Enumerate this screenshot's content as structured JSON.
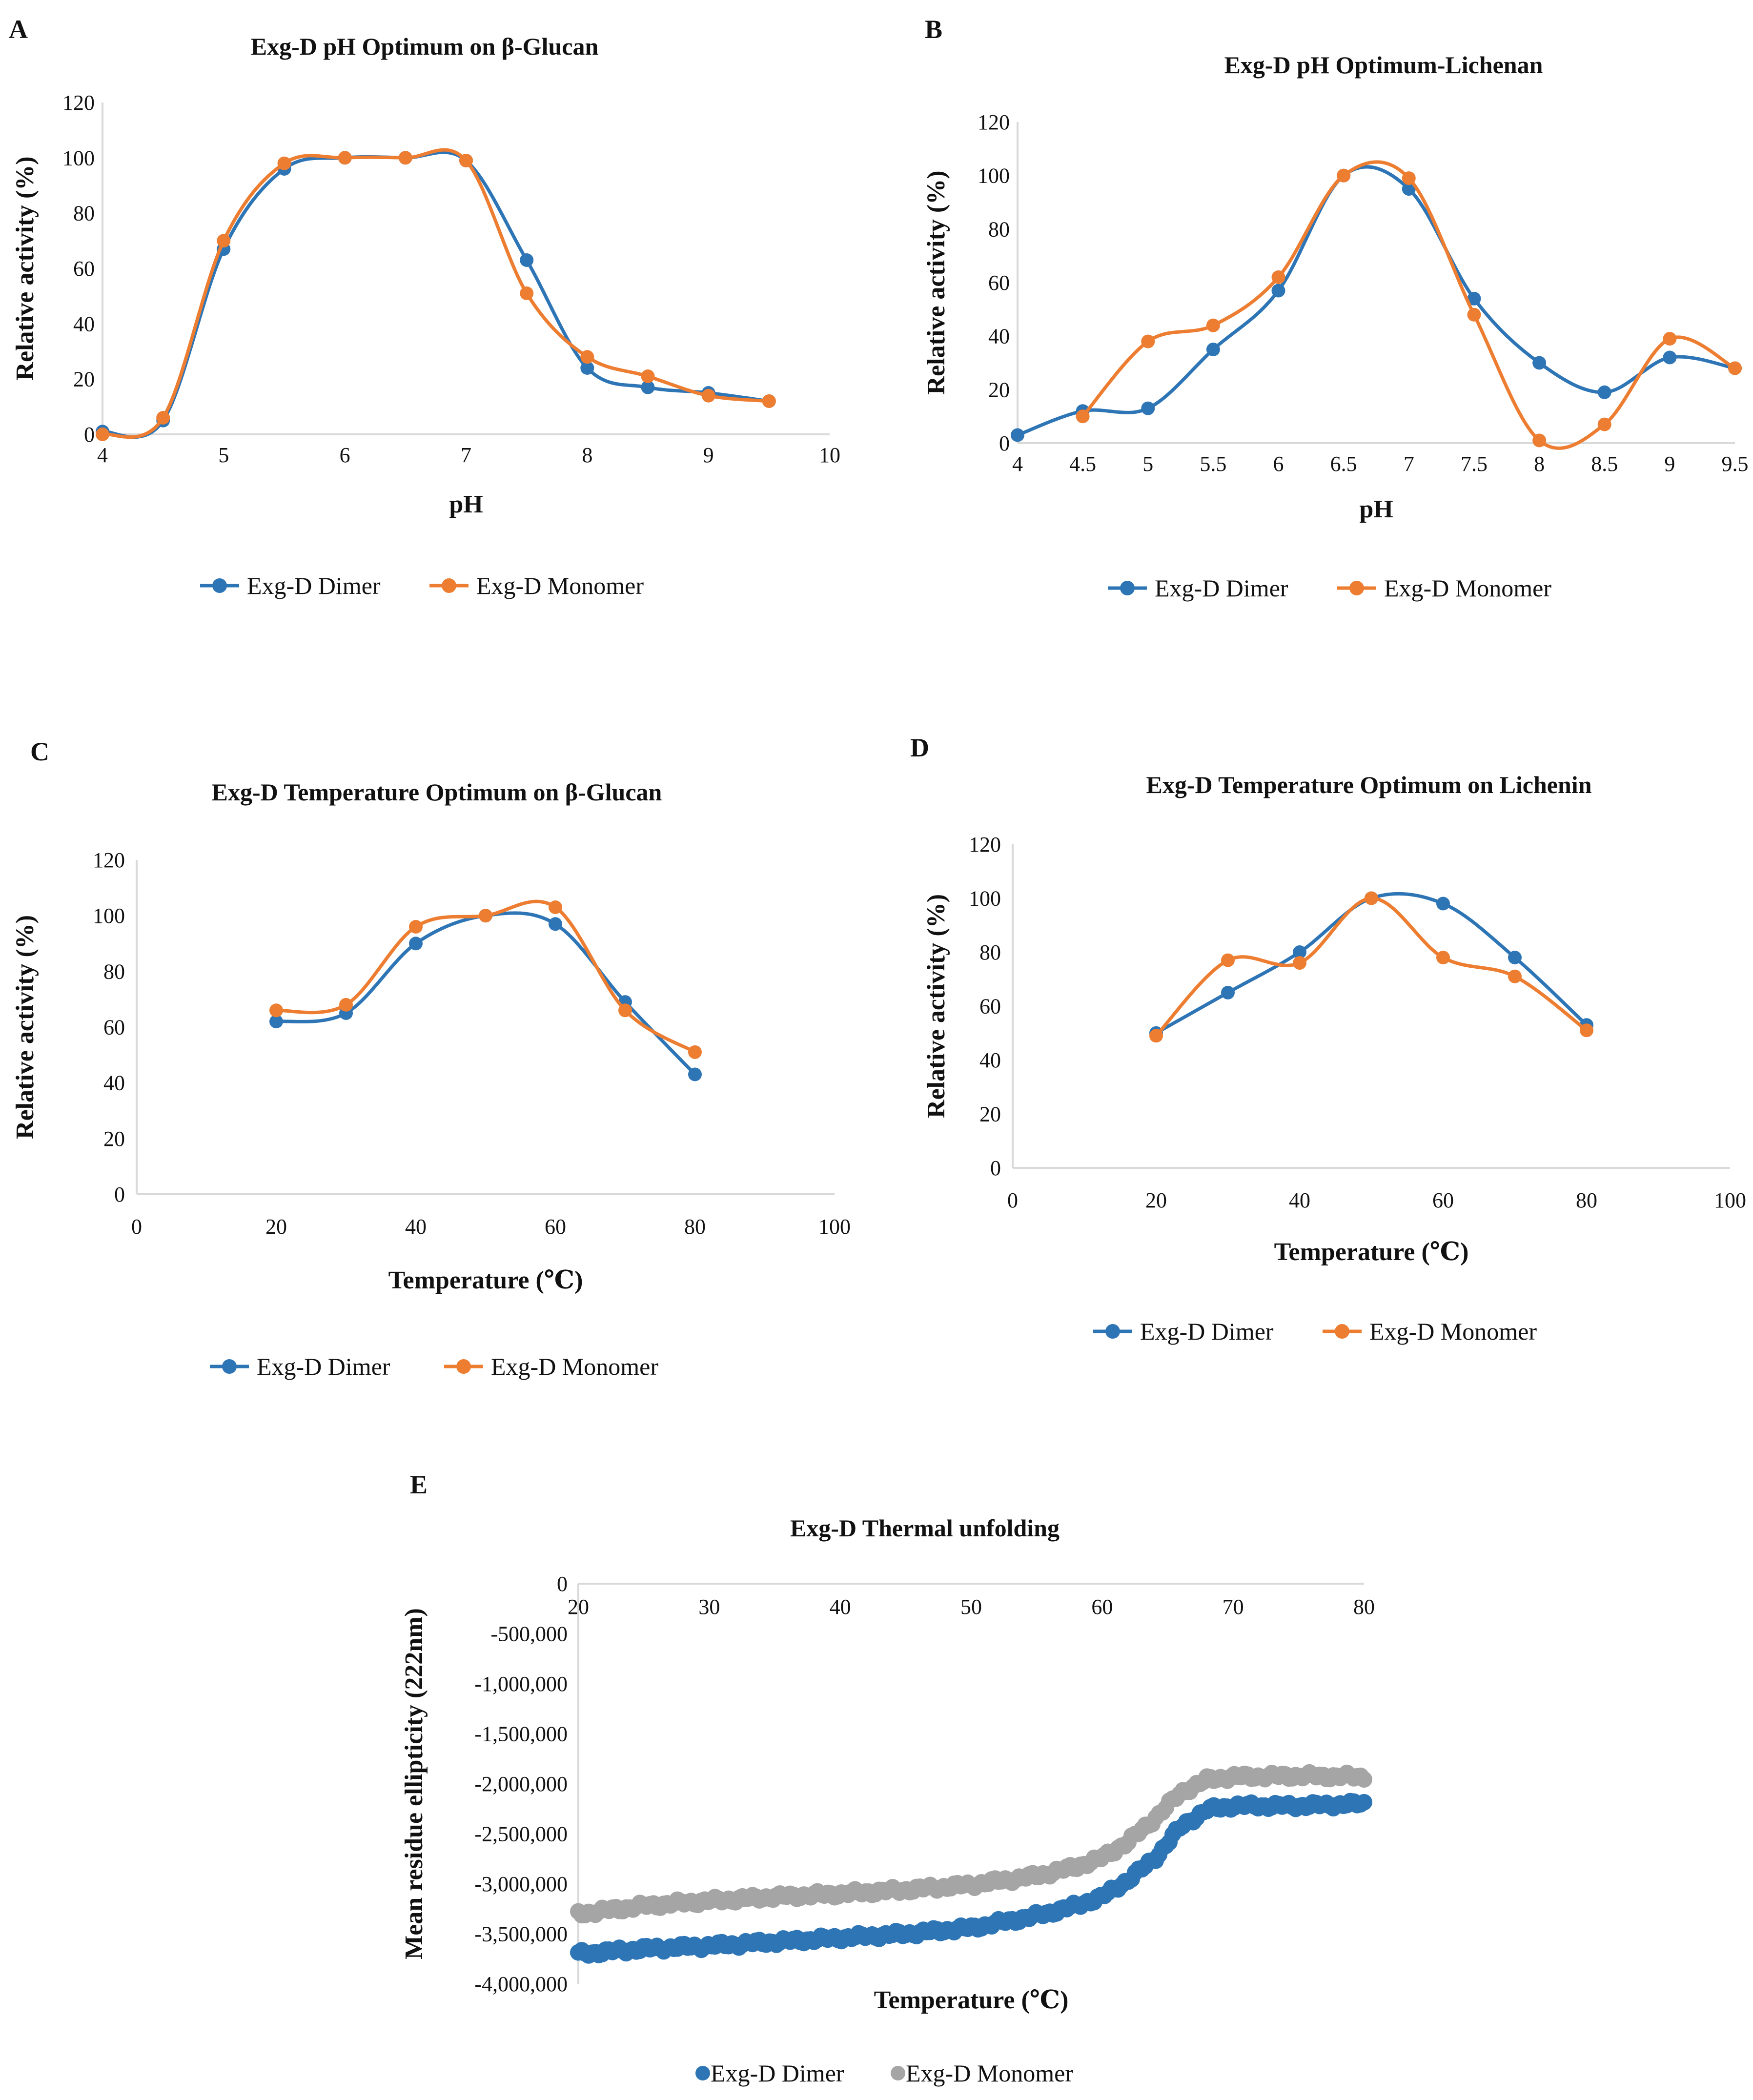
{
  "colors": {
    "dimer": "#2e75b6",
    "monomer": "#ed7d31",
    "monomer_grey": "#a5a5a5",
    "axis": "#d9d9d9"
  },
  "chart_data": [
    {
      "id": "A",
      "panel_label": "A",
      "type": "line",
      "title": "Exg-D pH Optimum on β-Glucan",
      "xlabel": "pH",
      "ylabel": "Relative activity (%)",
      "xlim": [
        4,
        10
      ],
      "ylim": [
        0,
        120
      ],
      "xticks": [
        "4",
        "5",
        "6",
        "7",
        "8",
        "9",
        "10"
      ],
      "yticks": [
        "0",
        "20",
        "40",
        "60",
        "80",
        "100",
        "120"
      ],
      "legend": "bottom",
      "series": [
        {
          "name": "Exg-D Dimer",
          "color": "#2e75b6",
          "x": [
            4,
            4.5,
            5,
            5.5,
            6,
            6.5,
            7,
            7.5,
            8,
            8.5,
            9,
            9.5
          ],
          "y": [
            1,
            5,
            67,
            96,
            100,
            100,
            99,
            63,
            24,
            17,
            15,
            12
          ]
        },
        {
          "name": "Exg-D Monomer",
          "color": "#ed7d31",
          "x": [
            4,
            4.5,
            5,
            5.5,
            6,
            6.5,
            7,
            7.5,
            8,
            8.5,
            9,
            9.5
          ],
          "y": [
            0,
            6,
            70,
            98,
            100,
            100,
            99,
            51,
            28,
            21,
            14,
            12
          ]
        }
      ]
    },
    {
      "id": "B",
      "panel_label": "B",
      "type": "line",
      "title": "Exg-D pH Optimum-Lichenan",
      "xlabel": "pH",
      "ylabel": "Relative activity (%)",
      "xlim": [
        4,
        9.5
      ],
      "ylim": [
        0,
        120
      ],
      "xticks": [
        "4",
        "4.5",
        "5",
        "5.5",
        "6",
        "6.5",
        "7",
        "7.5",
        "8",
        "8.5",
        "9",
        "9.5"
      ],
      "yticks": [
        "0",
        "20",
        "40",
        "60",
        "80",
        "100",
        "120"
      ],
      "legend": "bottom",
      "series": [
        {
          "name": "Exg-D Dimer",
          "color": "#2e75b6",
          "x": [
            4,
            4.5,
            5,
            5.5,
            6,
            6.5,
            7,
            7.5,
            8,
            8.5,
            9,
            9.5
          ],
          "y": [
            3,
            12,
            13,
            35,
            57,
            100,
            95,
            54,
            30,
            19,
            32,
            28
          ]
        },
        {
          "name": "Exg-D Monomer",
          "color": "#ed7d31",
          "x": [
            4.5,
            5,
            5.5,
            6,
            6.5,
            7,
            7.5,
            8,
            8.5,
            9,
            9.5
          ],
          "y": [
            10,
            38,
            44,
            62,
            100,
            99,
            48,
            1,
            7,
            39,
            28
          ]
        }
      ]
    },
    {
      "id": "C",
      "panel_label": "C",
      "type": "line",
      "title": "Exg-D Temperature Optimum on β-Glucan",
      "xlabel": "Temperature (℃)",
      "ylabel": "Relative activity (%)",
      "xlim": [
        0,
        100
      ],
      "ylim": [
        0,
        120
      ],
      "xticks": [
        "0",
        "20",
        "40",
        "60",
        "80",
        "100"
      ],
      "yticks": [
        "0",
        "20",
        "40",
        "60",
        "80",
        "100",
        "120"
      ],
      "legend": "bottom",
      "series": [
        {
          "name": "Exg-D Dimer",
          "color": "#2e75b6",
          "x": [
            20,
            30,
            40,
            50,
            60,
            70,
            80
          ],
          "y": [
            62,
            65,
            90,
            100,
            97,
            69,
            43
          ]
        },
        {
          "name": "Exg-D Monomer",
          "color": "#ed7d31",
          "x": [
            20,
            30,
            40,
            50,
            60,
            70,
            80
          ],
          "y": [
            66,
            68,
            96,
            100,
            103,
            66,
            51
          ]
        }
      ]
    },
    {
      "id": "D",
      "panel_label": "D",
      "type": "line",
      "title": "Exg-D Temperature Optimum on Lichenin",
      "xlabel": "Temperature (℃)",
      "ylabel": "Relative activity (%)",
      "xlim": [
        0,
        100
      ],
      "ylim": [
        0,
        120
      ],
      "xticks": [
        "0",
        "20",
        "40",
        "60",
        "80",
        "100"
      ],
      "yticks": [
        "0",
        "20",
        "40",
        "60",
        "80",
        "100",
        "120"
      ],
      "legend": "bottom",
      "series": [
        {
          "name": "Exg-D Dimer",
          "color": "#2e75b6",
          "x": [
            20,
            30,
            40,
            50,
            60,
            70,
            80
          ],
          "y": [
            50,
            65,
            80,
            100,
            98,
            78,
            53
          ]
        },
        {
          "name": "Exg-D Monomer",
          "color": "#ed7d31",
          "x": [
            20,
            30,
            40,
            50,
            60,
            70,
            80
          ],
          "y": [
            49,
            77,
            76,
            100,
            78,
            71,
            51
          ]
        }
      ]
    },
    {
      "id": "E",
      "panel_label": "E",
      "type": "scatter",
      "title": "Exg-D Thermal unfolding",
      "xlabel": "Temperature (℃)",
      "ylabel": "Mean residue ellipticity (222nm)",
      "xlim": [
        20,
        80
      ],
      "ylim": [
        -4000000,
        0
      ],
      "xticks": [
        "20",
        "30",
        "40",
        "50",
        "60",
        "70",
        "80"
      ],
      "yticks": [
        "0",
        "-500,000",
        "-1,000,000",
        "-1,500,000",
        "-2,000,000",
        "-2,500,000",
        "-3,000,000",
        "-3,500,000",
        "-4,000,000"
      ],
      "legend": "bottom",
      "series": [
        {
          "name": "Exg-D Dimer",
          "color": "#2e75b6",
          "x": [
            20,
            25,
            30,
            35,
            40,
            45,
            50,
            55,
            58,
            60,
            62,
            64,
            66,
            68,
            70,
            75,
            80
          ],
          "y": [
            -3700000,
            -3650000,
            -3620000,
            -3580000,
            -3540000,
            -3500000,
            -3440000,
            -3320000,
            -3220000,
            -3130000,
            -2960000,
            -2750000,
            -2430000,
            -2260000,
            -2220000,
            -2220000,
            -2200000
          ]
        },
        {
          "name": "Exg-D Monomer",
          "color": "#a5a5a5",
          "x": [
            20,
            25,
            30,
            35,
            40,
            45,
            50,
            55,
            58,
            60,
            62,
            64,
            66,
            68,
            70,
            75,
            80
          ],
          "y": [
            -3300000,
            -3220000,
            -3170000,
            -3130000,
            -3100000,
            -3060000,
            -3010000,
            -2920000,
            -2830000,
            -2740000,
            -2580000,
            -2350000,
            -2090000,
            -1960000,
            -1930000,
            -1920000,
            -1930000
          ]
        }
      ]
    }
  ]
}
